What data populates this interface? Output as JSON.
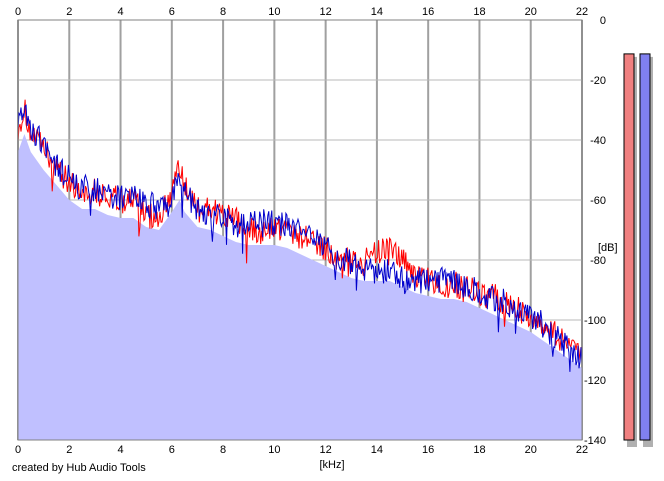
{
  "chart_data": {
    "type": "area",
    "title": "",
    "xlabel": "[kHz]",
    "ylabel": "[dB]",
    "xlim": [
      0,
      22
    ],
    "ylim": [
      -140,
      0
    ],
    "x_ticks": [
      "0",
      "2",
      "4",
      "6",
      "8",
      "10",
      "12",
      "14",
      "16",
      "18",
      "20",
      "22"
    ],
    "y_ticks": [
      "0",
      "-20",
      "-40",
      "-60",
      "-80",
      "-100",
      "-120",
      "-140"
    ],
    "grid": true,
    "series": [
      {
        "color": "#ff0000",
        "x": [
          0,
          0.25,
          0.5,
          1,
          1.5,
          2,
          2.5,
          3,
          3.5,
          4,
          4.5,
          5,
          5.5,
          6,
          6.3,
          6.5,
          7,
          7.5,
          8,
          8.5,
          9,
          9.5,
          10,
          10.5,
          11,
          11.5,
          12,
          12.5,
          13,
          13.5,
          14,
          14.5,
          15,
          15.5,
          16,
          16.5,
          17,
          17.5,
          18,
          18.5,
          19,
          19.5,
          20,
          20.5,
          21,
          21.5,
          22
        ],
        "values": [
          -36,
          -30,
          -38,
          -43,
          -49,
          -54,
          -57,
          -57,
          -59,
          -60,
          -60,
          -65,
          -66,
          -57,
          -50,
          -56,
          -63,
          -63,
          -65,
          -67,
          -70,
          -71,
          -69,
          -70,
          -72,
          -74,
          -76,
          -78,
          -80,
          -81,
          -77,
          -77,
          -80,
          -85,
          -87,
          -89,
          -88,
          -89,
          -91,
          -92,
          -94,
          -96,
          -100,
          -102,
          -105,
          -109,
          -112
        ]
      },
      {
        "color": "#0000cc",
        "x": [
          0,
          0.25,
          0.5,
          1,
          1.5,
          2,
          2.5,
          3,
          3.5,
          4,
          4.5,
          5,
          5.5,
          6,
          6.3,
          6.5,
          7,
          7.5,
          8,
          8.5,
          9,
          9.5,
          10,
          10.5,
          11,
          11.5,
          12,
          12.5,
          13,
          13.5,
          14,
          14.5,
          15,
          15.5,
          16,
          16.5,
          17,
          17.5,
          18,
          18.5,
          19,
          19.5,
          20,
          20.5,
          21,
          21.5,
          22
        ],
        "values": [
          -32,
          -28,
          -36,
          -42,
          -48,
          -53,
          -56,
          -56,
          -58,
          -59,
          -59,
          -61,
          -63,
          -58,
          -54,
          -58,
          -63,
          -64,
          -66,
          -68,
          -68,
          -67,
          -68,
          -68,
          -71,
          -73,
          -76,
          -79,
          -81,
          -83,
          -84,
          -84,
          -86,
          -87,
          -87,
          -87,
          -87,
          -89,
          -91,
          -93,
          -94,
          -96,
          -98,
          -102,
          -106,
          -109,
          -112
        ]
      }
    ],
    "filled_area": {
      "color": "#c0c0ff",
      "x": [
        0,
        0.25,
        0.5,
        1,
        1.5,
        2,
        2.5,
        3,
        3.5,
        4,
        4.5,
        5,
        5.5,
        6,
        6.3,
        6.5,
        7,
        7.5,
        8,
        8.5,
        9,
        9.5,
        10,
        10.5,
        11,
        11.5,
        12,
        12.5,
        13,
        13.5,
        14,
        14.5,
        15,
        15.5,
        16,
        16.5,
        17,
        17.5,
        18,
        18.5,
        19,
        19.5,
        20,
        20.5,
        21,
        21.5,
        22
      ],
      "values": [
        -44,
        -38,
        -44,
        -50,
        -55,
        -60,
        -63,
        -63,
        -65,
        -66,
        -66,
        -69,
        -70,
        -64,
        -60,
        -64,
        -69,
        -70,
        -72,
        -74,
        -75,
        -75,
        -75,
        -76,
        -78,
        -80,
        -82,
        -84,
        -86,
        -87,
        -87,
        -87,
        -89,
        -91,
        -92,
        -93,
        -93,
        -94,
        -96,
        -98,
        -100,
        -102,
        -104,
        -107,
        -110,
        -113,
        -116
      ]
    },
    "level_meters": [
      {
        "color": "#f08080",
        "level": 0.99
      },
      {
        "color": "#8080f0",
        "level": 0.99
      }
    ]
  },
  "credit": "created by Hub Audio Tools"
}
